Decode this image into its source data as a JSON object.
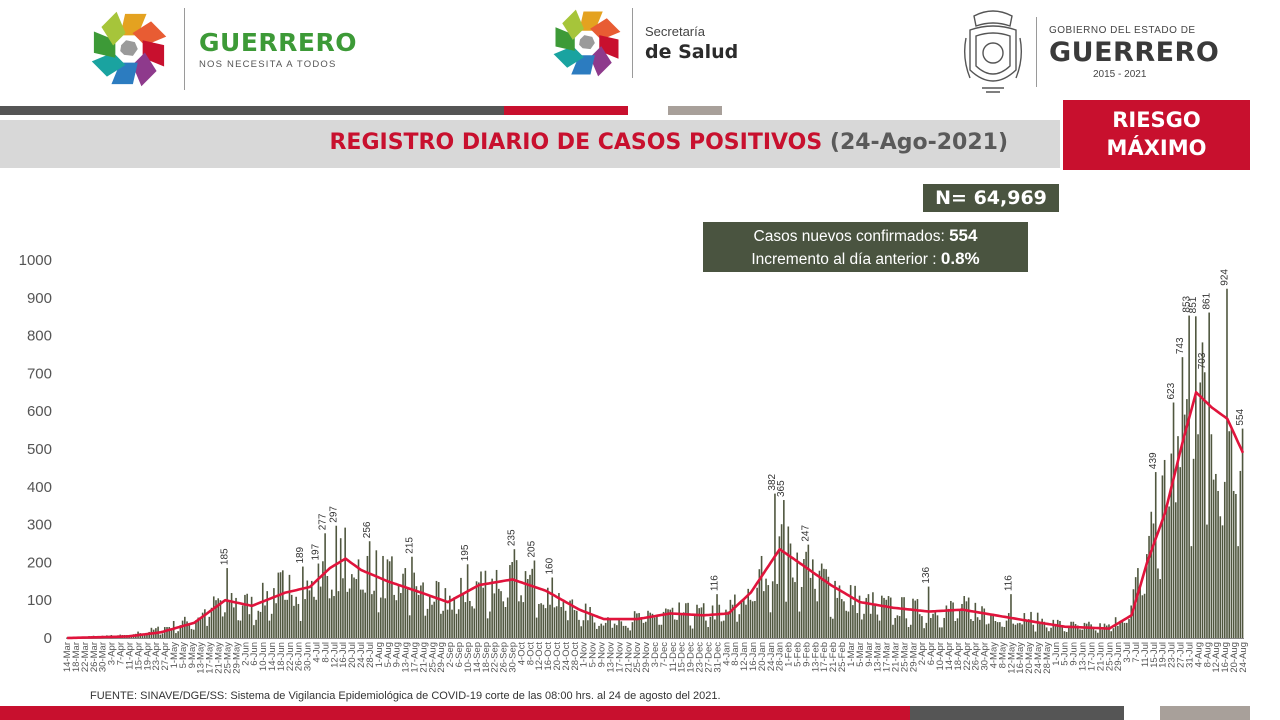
{
  "header": {
    "left_logo": {
      "title": "GUERRERO",
      "subtitle": "NOS NECESITA A TODOS"
    },
    "mid_logo": {
      "line1": "Secretaría",
      "line2": "de Salud"
    },
    "right_logo": {
      "line1": "GOBIERNO DEL ESTADO DE",
      "line2": "GUERRERO",
      "line3": "2015 - 2021"
    }
  },
  "title": {
    "main": "REGISTRO DIARIO DE CASOS POSITIVOS",
    "date": "(24-Ago-2021)"
  },
  "risk": {
    "line1": "RIESGO",
    "line2": "MÁXIMO"
  },
  "total": {
    "label": "N=",
    "value": "64,969"
  },
  "stats": {
    "new_label": "Casos nuevos confirmados:",
    "new_value": "554",
    "inc_label": "Incremento al día anterior :",
    "inc_value": "0.8%"
  },
  "footer": {
    "source": "FUENTE: SINAVE/DGE/SS: Sistema de Vigilancia Epidemiológica de COVID-19 corte de las 08:00 hrs. al 24 de agosto del 2021."
  },
  "colors": {
    "bar": "#50573f",
    "line": "#e0143c",
    "red": "#c8102e",
    "dark": "#4a5440",
    "gray": "#5a5a5a",
    "taupe": "#a8a09a"
  },
  "chart_data": {
    "type": "bar",
    "series": [
      {
        "name": "",
        "type": "bar"
      },
      {
        "name": "",
        "type": "line"
      }
    ],
    "ylim": [
      0,
      1000
    ],
    "yticks": [
      0,
      100,
      200,
      300,
      400,
      500,
      600,
      700,
      800,
      900,
      1000
    ],
    "x_start": "2020-03-14",
    "x_end": "2021-08-24",
    "x_tick_step_days": 4,
    "month_abbr": [
      "Jan",
      "Feb",
      "Mar",
      "Apr",
      "May",
      "Jun",
      "Jul",
      "Aug",
      "Sep",
      "Oct",
      "Nov",
      "Dec"
    ],
    "bar_profile": [
      [
        "2020-03-14",
        2
      ],
      [
        "2020-04-10",
        8
      ],
      [
        "2020-04-25",
        25
      ],
      [
        "2020-05-10",
        50
      ],
      [
        "2020-05-24",
        110
      ],
      [
        "2020-06-05",
        90
      ],
      [
        "2020-06-20",
        145
      ],
      [
        "2020-07-01",
        130
      ],
      [
        "2020-07-10",
        175
      ],
      [
        "2020-07-17",
        220
      ],
      [
        "2020-07-24",
        200
      ],
      [
        "2020-08-05",
        165
      ],
      [
        "2020-08-20",
        130
      ],
      [
        "2020-09-01",
        100
      ],
      [
        "2020-09-15",
        150
      ],
      [
        "2020-09-30",
        165
      ],
      [
        "2020-10-15",
        130
      ],
      [
        "2020-10-30",
        75
      ],
      [
        "2020-11-10",
        50
      ],
      [
        "2020-11-25",
        55
      ],
      [
        "2020-12-10",
        70
      ],
      [
        "2020-12-25",
        70
      ],
      [
        "2021-01-05",
        75
      ],
      [
        "2021-01-15",
        130
      ],
      [
        "2021-01-28",
        240
      ],
      [
        "2021-02-08",
        200
      ],
      [
        "2021-02-20",
        150
      ],
      [
        "2021-03-05",
        100
      ],
      [
        "2021-03-20",
        85
      ],
      [
        "2021-04-05",
        75
      ],
      [
        "2021-04-20",
        85
      ],
      [
        "2021-05-05",
        65
      ],
      [
        "2021-05-20",
        55
      ],
      [
        "2021-06-05",
        35
      ],
      [
        "2021-06-25",
        30
      ],
      [
        "2021-07-05",
        80
      ],
      [
        "2021-07-12",
        250
      ],
      [
        "2021-07-20",
        400
      ],
      [
        "2021-07-28",
        560
      ],
      [
        "2021-08-03",
        640
      ],
      [
        "2021-08-10",
        600
      ],
      [
        "2021-08-17",
        620
      ],
      [
        "2021-08-24",
        520
      ]
    ],
    "line_profile": [
      [
        "2020-03-14",
        0
      ],
      [
        "2020-04-10",
        4
      ],
      [
        "2020-04-25",
        15
      ],
      [
        "2020-05-10",
        40
      ],
      [
        "2020-05-24",
        100
      ],
      [
        "2020-06-05",
        85
      ],
      [
        "2020-06-20",
        120
      ],
      [
        "2020-07-01",
        135
      ],
      [
        "2020-07-10",
        185
      ],
      [
        "2020-07-17",
        210
      ],
      [
        "2020-07-24",
        180
      ],
      [
        "2020-08-05",
        150
      ],
      [
        "2020-08-20",
        120
      ],
      [
        "2020-09-01",
        95
      ],
      [
        "2020-09-15",
        140
      ],
      [
        "2020-09-30",
        155
      ],
      [
        "2020-10-15",
        125
      ],
      [
        "2020-10-30",
        75
      ],
      [
        "2020-11-10",
        50
      ],
      [
        "2020-11-25",
        50
      ],
      [
        "2020-12-10",
        65
      ],
      [
        "2020-12-25",
        60
      ],
      [
        "2021-01-05",
        65
      ],
      [
        "2021-01-15",
        120
      ],
      [
        "2021-01-28",
        235
      ],
      [
        "2021-02-08",
        190
      ],
      [
        "2021-02-20",
        140
      ],
      [
        "2021-03-05",
        95
      ],
      [
        "2021-03-20",
        80
      ],
      [
        "2021-04-05",
        70
      ],
      [
        "2021-04-20",
        75
      ],
      [
        "2021-05-05",
        60
      ],
      [
        "2021-05-20",
        45
      ],
      [
        "2021-06-05",
        30
      ],
      [
        "2021-06-25",
        25
      ],
      [
        "2021-07-05",
        60
      ],
      [
        "2021-07-12",
        200
      ],
      [
        "2021-07-20",
        330
      ],
      [
        "2021-07-28",
        520
      ],
      [
        "2021-08-03",
        650
      ],
      [
        "2021-08-10",
        610
      ],
      [
        "2021-08-17",
        580
      ],
      [
        "2021-08-24",
        490
      ]
    ],
    "labeled_points": [
      [
        "2020-05-25",
        185
      ],
      [
        "2020-06-28",
        189
      ],
      [
        "2020-07-05",
        197
      ],
      [
        "2020-07-08",
        277
      ],
      [
        "2020-07-13",
        297
      ],
      [
        "2020-07-28",
        256
      ],
      [
        "2020-08-16",
        215
      ],
      [
        "2020-09-10",
        195
      ],
      [
        "2020-10-01",
        235
      ],
      [
        "2020-10-10",
        205
      ],
      [
        "2020-10-18",
        160
      ],
      [
        "2020-12-31",
        116
      ],
      [
        "2021-01-26",
        382
      ],
      [
        "2021-01-30",
        365
      ],
      [
        "2021-02-10",
        247
      ],
      [
        "2021-04-05",
        136
      ],
      [
        "2021-05-12",
        116
      ],
      [
        "2021-07-16",
        439
      ],
      [
        "2021-07-24",
        623
      ],
      [
        "2021-07-28",
        743
      ],
      [
        "2021-07-31",
        853
      ],
      [
        "2021-08-03",
        851
      ],
      [
        "2021-08-07",
        703
      ],
      [
        "2021-08-09",
        861
      ],
      [
        "2021-08-17",
        924
      ],
      [
        "2021-08-24",
        554
      ]
    ]
  }
}
